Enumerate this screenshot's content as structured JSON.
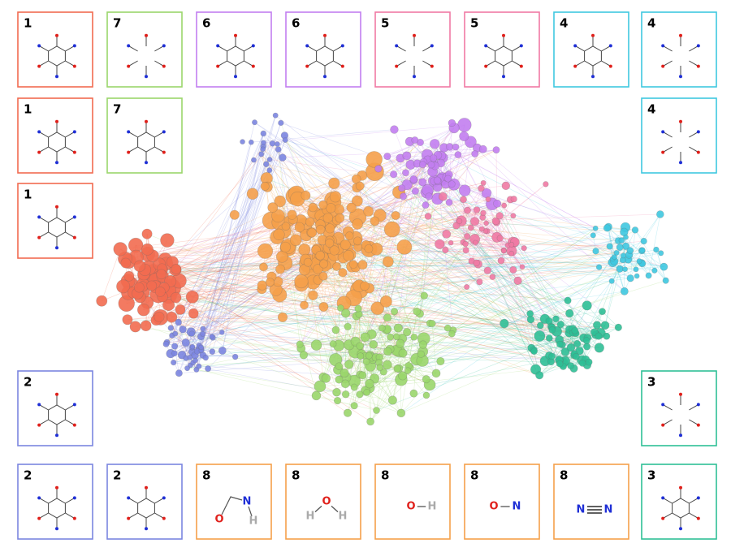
{
  "network": {
    "clusters": [
      {
        "color": "#f26b50"
      },
      {
        "color": "#7b85e0"
      },
      {
        "color": "#2fbf96"
      },
      {
        "color": "#3fc8e0"
      },
      {
        "color": "#f07aa4"
      },
      {
        "color": "#c27ef0"
      },
      {
        "color": "#9ad66b"
      },
      {
        "color": "#f5a04a"
      }
    ]
  },
  "panels": [
    {
      "label": "1",
      "color": "#f26b50"
    },
    {
      "label": "7",
      "color": "#9ad66b"
    },
    {
      "label": "6",
      "color": "#c27ef0"
    },
    {
      "label": "6",
      "color": "#c27ef0"
    },
    {
      "label": "5",
      "color": "#f07aa4"
    },
    {
      "label": "5",
      "color": "#f07aa4"
    },
    {
      "label": "4",
      "color": "#3fc8e0"
    },
    {
      "label": "4",
      "color": "#3fc8e0"
    },
    {
      "label": "1",
      "color": "#f26b50"
    },
    {
      "label": "7",
      "color": "#9ad66b"
    },
    {
      "label": "4",
      "color": "#3fc8e0"
    },
    {
      "label": "1",
      "color": "#f26b50"
    },
    {
      "label": "2",
      "color": "#7b85e0"
    },
    {
      "label": "3",
      "color": "#2fbf96"
    },
    {
      "label": "2",
      "color": "#7b85e0"
    },
    {
      "label": "2",
      "color": "#7b85e0"
    },
    {
      "label": "8",
      "color": "#f5a04a",
      "atoms": [
        {
          "symbol": "O"
        },
        {
          "symbol": "N"
        },
        {
          "symbol": "H"
        }
      ]
    },
    {
      "label": "8",
      "color": "#f5a04a",
      "atoms": [
        {
          "symbol": "H"
        },
        {
          "symbol": "O"
        },
        {
          "symbol": "H"
        }
      ]
    },
    {
      "label": "8",
      "color": "#f5a04a",
      "atoms": [
        {
          "symbol": "O"
        },
        {
          "symbol": "H"
        }
      ]
    },
    {
      "label": "8",
      "color": "#f5a04a",
      "atoms": [
        {
          "symbol": "O"
        },
        {
          "symbol": "N"
        }
      ]
    },
    {
      "label": "8",
      "color": "#f5a04a",
      "atoms": [
        {
          "symbol": "N"
        },
        {
          "symbol": "N"
        }
      ]
    },
    {
      "label": "3",
      "color": "#2fbf96"
    }
  ]
}
